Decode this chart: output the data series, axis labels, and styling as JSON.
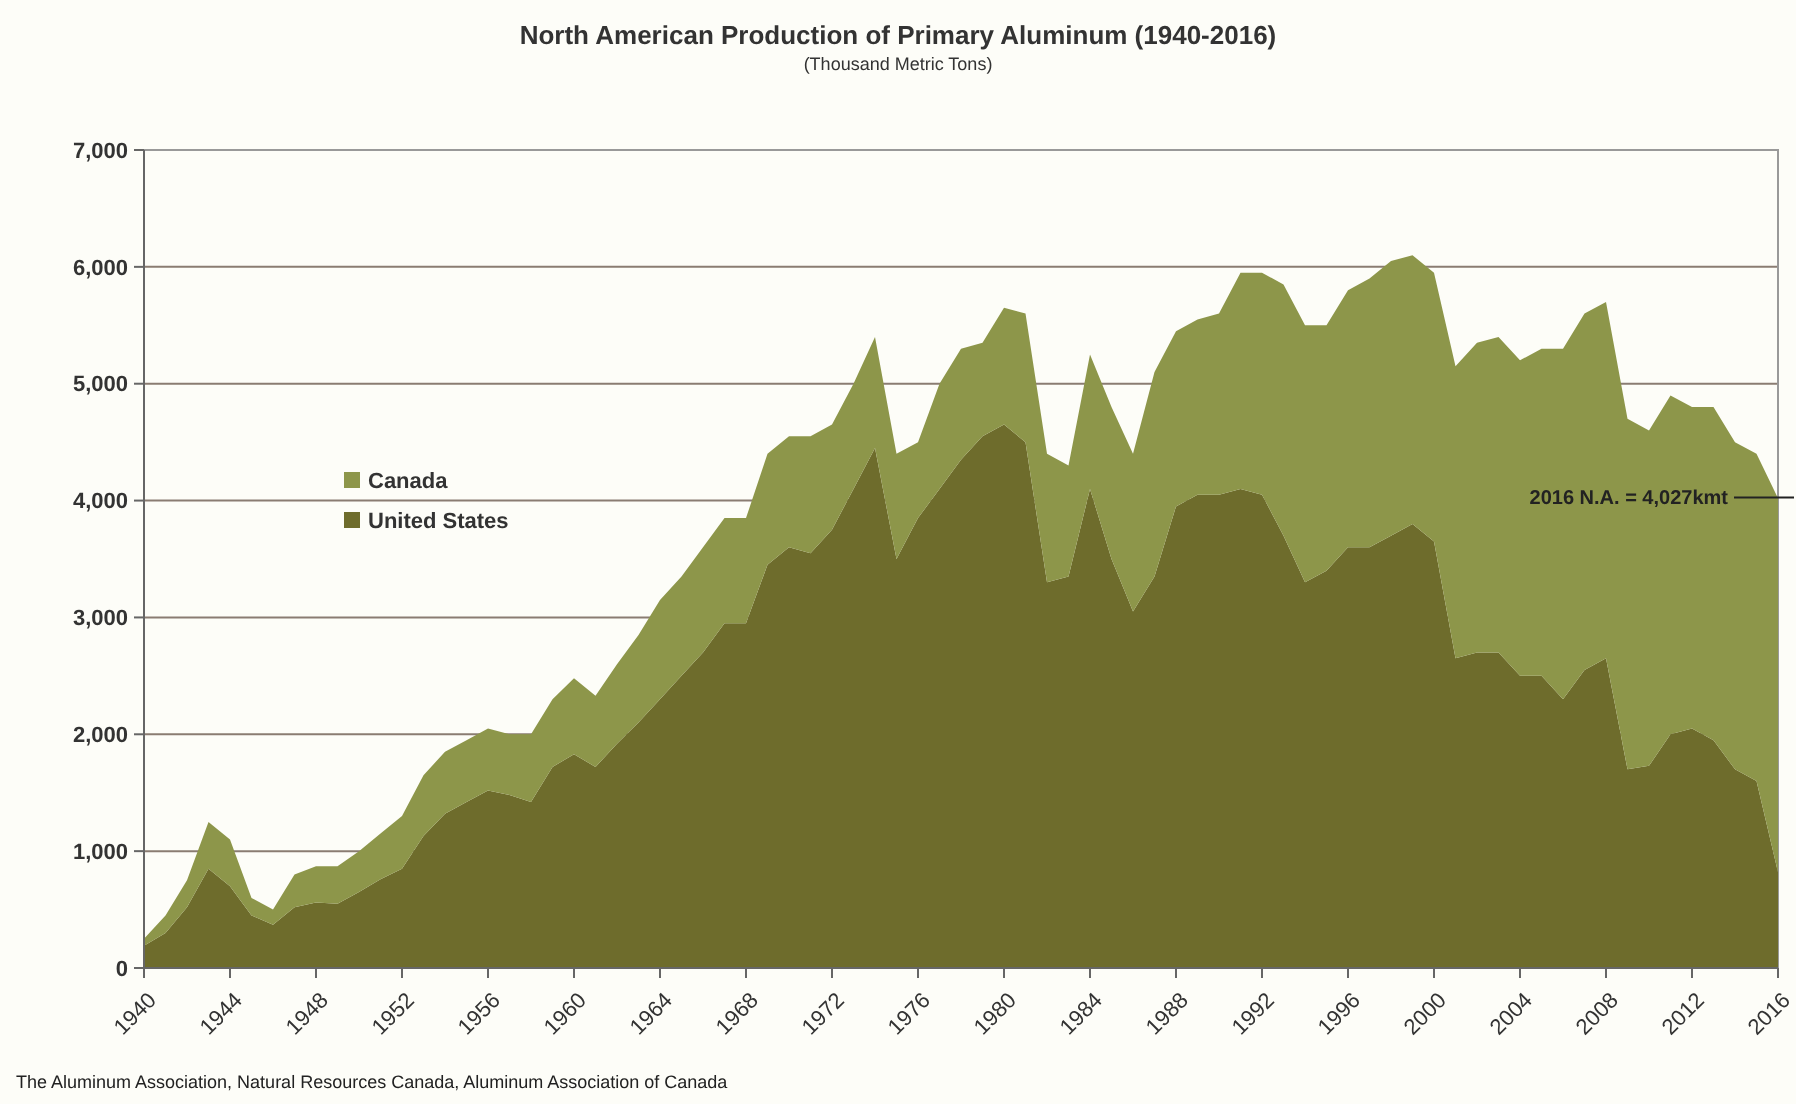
{
  "chart_data": {
    "type": "area",
    "stacked": true,
    "title": "North American Production of Primary Aluminum (1940-2016)",
    "subtitle": "(Thousand Metric Tons)",
    "x": [
      1940,
      1941,
      1942,
      1943,
      1944,
      1945,
      1946,
      1947,
      1948,
      1949,
      1950,
      1951,
      1952,
      1953,
      1954,
      1955,
      1956,
      1957,
      1958,
      1959,
      1960,
      1961,
      1962,
      1963,
      1964,
      1965,
      1966,
      1967,
      1968,
      1969,
      1970,
      1971,
      1972,
      1973,
      1974,
      1975,
      1976,
      1977,
      1978,
      1979,
      1980,
      1981,
      1982,
      1983,
      1984,
      1985,
      1986,
      1987,
      1988,
      1989,
      1990,
      1991,
      1992,
      1993,
      1994,
      1995,
      1996,
      1997,
      1998,
      1999,
      2000,
      2001,
      2002,
      2003,
      2004,
      2005,
      2006,
      2007,
      2008,
      2009,
      2010,
      2011,
      2012,
      2013,
      2014,
      2015,
      2016
    ],
    "series": [
      {
        "name": "United States",
        "color": "#6e6c2c",
        "values": [
          190,
          300,
          520,
          850,
          700,
          450,
          370,
          520,
          560,
          550,
          650,
          760,
          850,
          1130,
          1320,
          1420,
          1520,
          1480,
          1420,
          1720,
          1830,
          1720,
          1920,
          2100,
          2300,
          2500,
          2700,
          2950,
          2950,
          3450,
          3600,
          3550,
          3750,
          4100,
          4450,
          3500,
          3850,
          4100,
          4350,
          4550,
          4650,
          4500,
          3300,
          3350,
          4100,
          3500,
          3050,
          3350,
          3950,
          4050,
          4050,
          4100,
          4050,
          3700,
          3300,
          3400,
          3600,
          3600,
          3700,
          3800,
          3650,
          2650,
          2700,
          2700,
          2500,
          2500,
          2300,
          2550,
          2650,
          1700,
          1730,
          2000,
          2050,
          1950,
          1700,
          1600,
          820
        ]
      },
      {
        "name": "Canada",
        "color": "#8d964a",
        "values": [
          60,
          150,
          230,
          400,
          400,
          150,
          130,
          280,
          310,
          320,
          350,
          390,
          450,
          520,
          530,
          530,
          530,
          520,
          580,
          580,
          650,
          610,
          680,
          750,
          850,
          850,
          900,
          900,
          900,
          950,
          950,
          1000,
          900,
          900,
          950,
          900,
          650,
          900,
          950,
          800,
          1000,
          1100,
          1100,
          950,
          1150,
          1300,
          1350,
          1750,
          1500,
          1500,
          1550,
          1850,
          1900,
          2150,
          2200,
          2100,
          2200,
          2300,
          2350,
          2300,
          2300,
          2500,
          2650,
          2700,
          2700,
          2800,
          3000,
          3050,
          3050,
          3000,
          2870,
          2900,
          2750,
          2850,
          2800,
          2800,
          3200
        ]
      }
    ],
    "xlim": [
      1940,
      2016
    ],
    "xticks": [
      1940,
      1944,
      1948,
      1952,
      1956,
      1960,
      1964,
      1968,
      1972,
      1976,
      1980,
      1984,
      1988,
      1992,
      1996,
      2000,
      2004,
      2008,
      2012,
      2016
    ],
    "ylim": [
      0,
      7000
    ],
    "yticks": [
      {
        "value": 0,
        "label": "0"
      },
      {
        "value": 1000,
        "label": "1,000"
      },
      {
        "value": 2000,
        "label": "2,000"
      },
      {
        "value": 3000,
        "label": "3,000"
      },
      {
        "value": 4000,
        "label": "4,000"
      },
      {
        "value": 5000,
        "label": "5,000"
      },
      {
        "value": 6000,
        "label": "6,000"
      },
      {
        "value": 7000,
        "label": "7,000"
      }
    ],
    "grid": "y",
    "legend": "left",
    "annotations": [
      {
        "text": "2016 N.A. = 4,027kmt",
        "x": 2016,
        "y": 4027
      },
      "The Aluminum Association, Natural Resources Canada, Aluminum Association of Canada"
    ]
  }
}
